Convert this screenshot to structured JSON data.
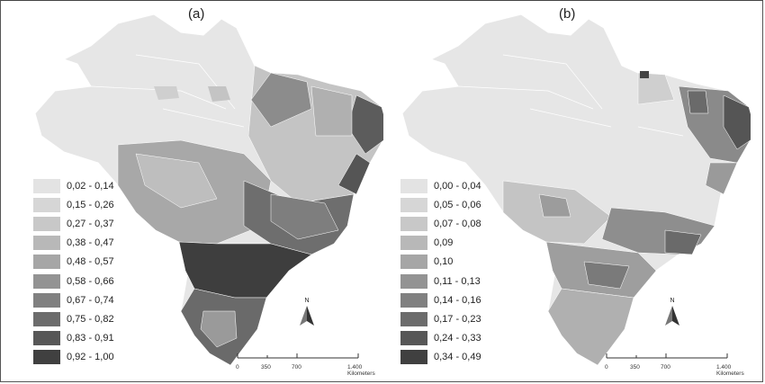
{
  "panels": [
    {
      "label": "(a)",
      "legend": [
        {
          "label": "0,02 - 0,14",
          "color": "#e3e3e3"
        },
        {
          "label": "0,15 - 0,26",
          "color": "#d6d6d6"
        },
        {
          "label": "0,27 - 0,37",
          "color": "#c8c8c8"
        },
        {
          "label": "0,38 - 0,47",
          "color": "#b8b8b8"
        },
        {
          "label": "0,48 - 0,57",
          "color": "#a6a6a6"
        },
        {
          "label": "0,58 - 0,66",
          "color": "#939393"
        },
        {
          "label": "0,67 - 0,74",
          "color": "#808080"
        },
        {
          "label": "0,75 - 0,82",
          "color": "#6c6c6c"
        },
        {
          "label": "0,83 - 0,91",
          "color": "#575757"
        },
        {
          "label": "0,92 - 1,00",
          "color": "#404040"
        }
      ],
      "north": "N",
      "scale": {
        "ticks": [
          "0",
          "350",
          "700",
          "1.400 Kilometers"
        ]
      }
    },
    {
      "label": "(b)",
      "legend": [
        {
          "label": "0,00 - 0,04",
          "color": "#e3e3e3"
        },
        {
          "label": "0,05 - 0,06",
          "color": "#d6d6d6"
        },
        {
          "label": "0,07 - 0,08",
          "color": "#c8c8c8"
        },
        {
          "label": "0,09",
          "color": "#b8b8b8"
        },
        {
          "label": "0,10",
          "color": "#a6a6a6"
        },
        {
          "label": "0,11 - 0,13",
          "color": "#939393"
        },
        {
          "label": "0,14 - 0,16",
          "color": "#808080"
        },
        {
          "label": "0,17 - 0,23",
          "color": "#6c6c6c"
        },
        {
          "label": "0,24 - 0,33",
          "color": "#575757"
        },
        {
          "label": "0,34 - 0,49",
          "color": "#404040"
        }
      ],
      "north": "N",
      "scale": {
        "ticks": [
          "0",
          "350",
          "700",
          "1.400 Kilometers"
        ]
      }
    }
  ]
}
